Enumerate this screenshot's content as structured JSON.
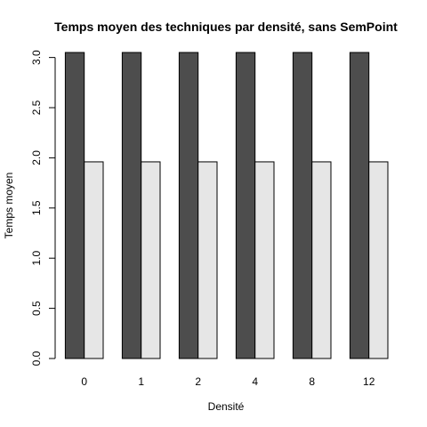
{
  "chart_data": {
    "type": "bar",
    "title": "Temps moyen des techniques par densité, sans SemPoint",
    "xlabel": "Densité",
    "ylabel": "Temps moyen",
    "categories": [
      "0",
      "1",
      "2",
      "4",
      "8",
      "12"
    ],
    "series": [
      {
        "values": [
          3.05,
          3.05,
          3.05,
          3.05,
          3.05,
          3.05
        ],
        "color": "#4d4d4d"
      },
      {
        "values": [
          1.96,
          1.96,
          1.96,
          1.96,
          1.96,
          1.96
        ],
        "color": "#e6e6e6"
      }
    ],
    "yticks": [
      "0.0",
      "0.5",
      "1.0",
      "1.5",
      "2.0",
      "2.5",
      "3.0"
    ],
    "ylim": [
      0,
      3.05
    ],
    "grid": false,
    "legend": "none"
  }
}
